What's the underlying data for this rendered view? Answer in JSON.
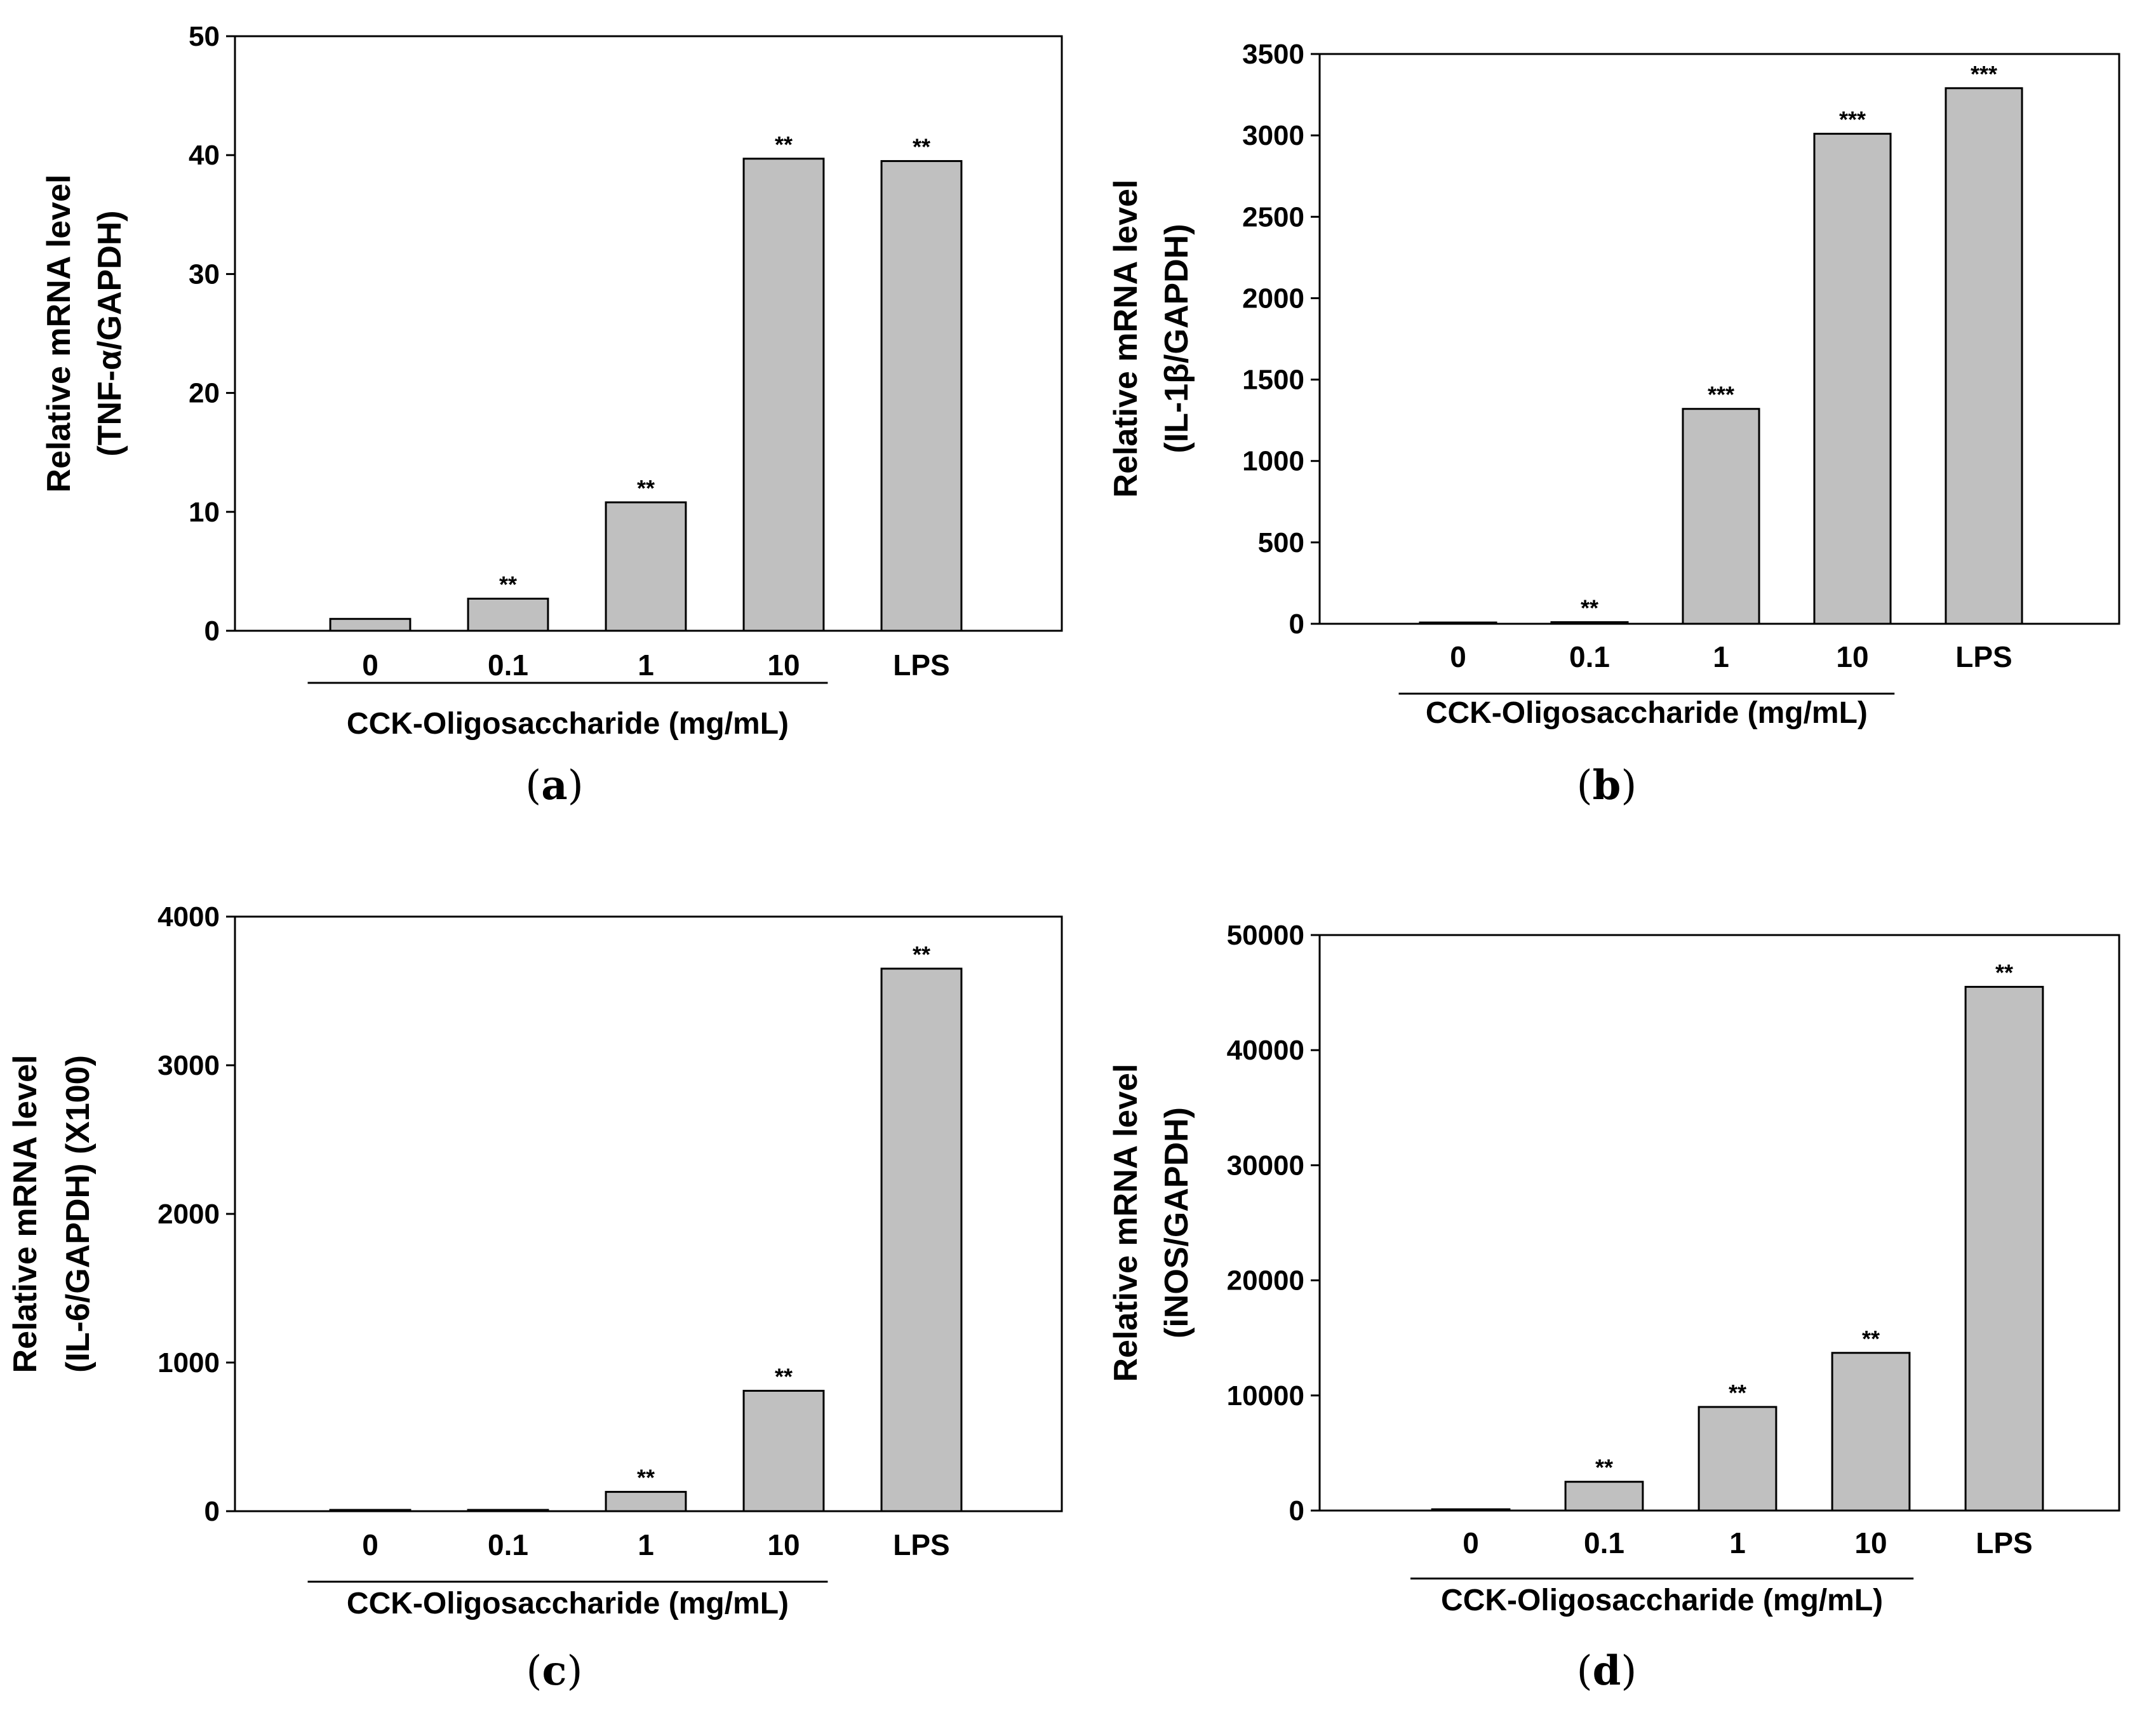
{
  "figure": {
    "group_label": "CCK-Oligosaccharide (mg/mL)"
  },
  "chart_data": [
    {
      "type": "bar",
      "panel": "(a)",
      "panel_letter": "a",
      "categories": [
        "0",
        "0.1",
        "1",
        "10",
        "LPS"
      ],
      "values": [
        1.0,
        2.7,
        10.8,
        39.7,
        39.5
      ],
      "significance": [
        "",
        "**",
        "**",
        "**",
        "**"
      ],
      "ylabel_line1": "Relative mRNA level",
      "ylabel_line2": "(TNF-α/GAPDH)",
      "xlabel": "CCK-Oligosaccharide (mg/mL)",
      "ylim": [
        0,
        50
      ],
      "yticks": [
        0,
        10,
        20,
        30,
        40,
        50
      ]
    },
    {
      "type": "bar",
      "panel": "(b)",
      "panel_letter": "b",
      "categories": [
        "0",
        "0.1",
        "1",
        "10",
        "LPS"
      ],
      "values": [
        2,
        10,
        1320,
        3010,
        3290
      ],
      "significance": [
        "",
        "**",
        "***",
        "***",
        "***"
      ],
      "ylabel_line1": "Relative mRNA level",
      "ylabel_line2": "(IL-1β/GAPDH)",
      "xlabel": "CCK-Oligosaccharide (mg/mL)",
      "ylim": [
        0,
        3500
      ],
      "yticks": [
        0,
        500,
        1000,
        1500,
        2000,
        2500,
        3000,
        3500
      ]
    },
    {
      "type": "bar",
      "panel": "(c)",
      "panel_letter": "c",
      "categories": [
        "0",
        "0.1",
        "1",
        "10",
        "LPS"
      ],
      "values": [
        1,
        3,
        130,
        810,
        3650
      ],
      "significance": [
        "",
        "",
        "**",
        "**",
        "**"
      ],
      "ylabel_line1": "Relative mRNA level",
      "ylabel_line2": "(IL-6/GAPDH) (X100)",
      "xlabel": "CCK-Oligosaccharide (mg/mL)",
      "ylim": [
        0,
        4000
      ],
      "yticks": [
        0,
        1000,
        2000,
        3000,
        4000
      ]
    },
    {
      "type": "bar",
      "panel": "(d)",
      "panel_letter": "d",
      "categories": [
        "0",
        "0.1",
        "1",
        "10",
        "LPS"
      ],
      "values": [
        20,
        2500,
        9000,
        13700,
        45500
      ],
      "significance": [
        "",
        "**",
        "**",
        "**",
        "**"
      ],
      "ylabel_line1": "Relative mRNA level",
      "ylabel_line2": "(iNOS/GAPDH)",
      "xlabel": "CCK-Oligosaccharide (mg/mL)",
      "ylim": [
        0,
        50000
      ],
      "yticks": [
        0,
        10000,
        20000,
        30000,
        40000,
        50000
      ]
    }
  ]
}
